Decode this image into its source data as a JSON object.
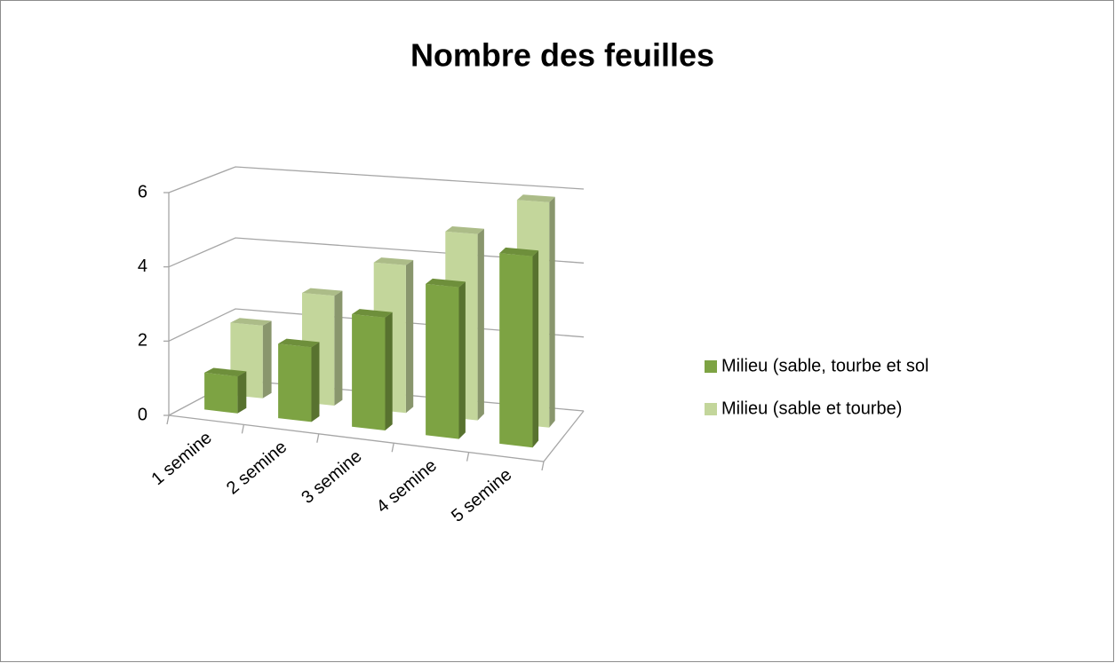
{
  "chart_data": {
    "type": "bar3d",
    "title": "Nombre des feuilles",
    "categories": [
      "1 semine",
      "2 semine",
      "3 semine",
      "4 semine",
      "5 semine"
    ],
    "series": [
      {
        "name": "Milieu (sable, tourbe et sol",
        "color": "#7da343",
        "values": [
          1,
          2,
          3,
          4,
          5
        ]
      },
      {
        "name": "Milieu (sable et tourbe)",
        "color": "#c3d69b",
        "values": [
          2,
          3,
          4,
          5,
          6
        ]
      }
    ],
    "ylim": [
      0,
      6
    ],
    "yticks": [
      0,
      2,
      4,
      6
    ],
    "grid": true,
    "legend": "right"
  }
}
